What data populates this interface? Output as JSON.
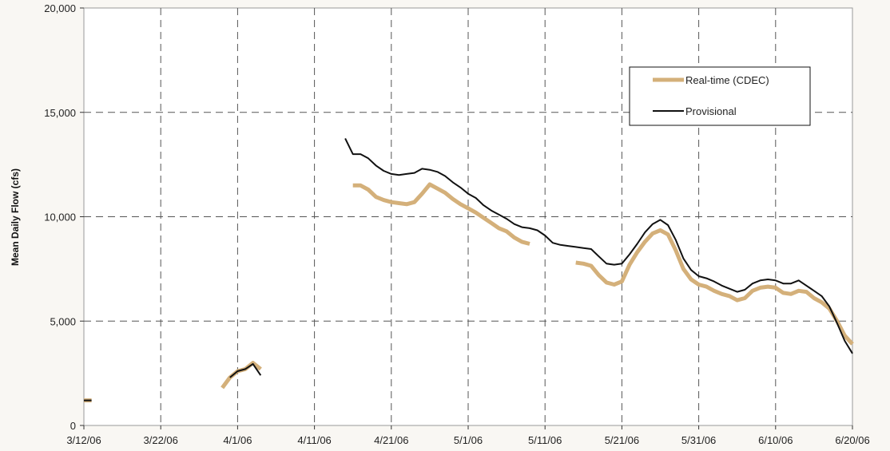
{
  "chart_data": {
    "type": "line",
    "title": "",
    "xlabel": "",
    "ylabel": "Mean Daily Flow (cfs)",
    "x_range": [
      "2006-03-12",
      "2006-06-20"
    ],
    "ylim": [
      0,
      20000
    ],
    "x_ticks": [
      "3/12/06",
      "3/22/06",
      "4/1/06",
      "4/11/06",
      "4/21/06",
      "5/1/06",
      "5/11/06",
      "5/21/06",
      "5/31/06",
      "6/10/06",
      "6/20/06"
    ],
    "y_ticks": [
      "0",
      "5,000",
      "10,000",
      "15,000",
      "20,000"
    ],
    "grid": true,
    "legend_placement": "upper-right inside plot",
    "legend": [
      "Real-time (CDEC)",
      "Provisional"
    ],
    "series": [
      {
        "name": "Real-time (CDEC)",
        "color": "#d4b07a",
        "segments": [
          [
            [
              "2006-03-12",
              1200
            ],
            [
              "2006-03-13",
              1200
            ]
          ],
          [
            [
              "2006-03-30",
              1800
            ],
            [
              "2006-03-31",
              2300
            ],
            [
              "2006-04-01",
              2600
            ],
            [
              "2006-04-02",
              2700
            ],
            [
              "2006-04-03",
              3000
            ],
            [
              "2006-04-04",
              2700
            ]
          ],
          [
            [
              "2006-04-16",
              11500
            ],
            [
              "2006-04-17",
              11500
            ],
            [
              "2006-04-18",
              11300
            ],
            [
              "2006-04-19",
              10950
            ],
            [
              "2006-04-20",
              10800
            ],
            [
              "2006-04-21",
              10700
            ],
            [
              "2006-04-22",
              10650
            ],
            [
              "2006-04-23",
              10600
            ],
            [
              "2006-04-24",
              10700
            ],
            [
              "2006-04-25",
              11100
            ],
            [
              "2006-04-26",
              11550
            ],
            [
              "2006-04-27",
              11350
            ],
            [
              "2006-04-28",
              11150
            ],
            [
              "2006-04-29",
              10850
            ],
            [
              "2006-04-30",
              10600
            ],
            [
              "2006-05-01",
              10400
            ],
            [
              "2006-05-02",
              10200
            ],
            [
              "2006-05-03",
              9950
            ],
            [
              "2006-05-04",
              9700
            ],
            [
              "2006-05-05",
              9450
            ],
            [
              "2006-05-06",
              9300
            ],
            [
              "2006-05-07",
              9000
            ],
            [
              "2006-05-08",
              8800
            ],
            [
              "2006-05-09",
              8700
            ]
          ],
          [
            [
              "2006-05-15",
              7800
            ],
            [
              "2006-05-16",
              7750
            ],
            [
              "2006-05-17",
              7650
            ],
            [
              "2006-05-18",
              7200
            ],
            [
              "2006-05-19",
              6850
            ],
            [
              "2006-05-20",
              6750
            ],
            [
              "2006-05-21",
              6900
            ],
            [
              "2006-05-22",
              7700
            ],
            [
              "2006-05-23",
              8300
            ],
            [
              "2006-05-24",
              8800
            ],
            [
              "2006-05-25",
              9200
            ],
            [
              "2006-05-26",
              9350
            ],
            [
              "2006-05-27",
              9150
            ],
            [
              "2006-05-28",
              8400
            ],
            [
              "2006-05-29",
              7500
            ],
            [
              "2006-05-30",
              7000
            ],
            [
              "2006-05-31",
              6750
            ],
            [
              "2006-06-01",
              6650
            ],
            [
              "2006-06-02",
              6450
            ],
            [
              "2006-06-03",
              6300
            ],
            [
              "2006-06-04",
              6200
            ],
            [
              "2006-06-05",
              6000
            ],
            [
              "2006-06-06",
              6100
            ],
            [
              "2006-06-07",
              6450
            ],
            [
              "2006-06-08",
              6600
            ],
            [
              "2006-06-09",
              6650
            ],
            [
              "2006-06-10",
              6600
            ],
            [
              "2006-06-11",
              6350
            ],
            [
              "2006-06-12",
              6300
            ],
            [
              "2006-06-13",
              6450
            ],
            [
              "2006-06-14",
              6400
            ],
            [
              "2006-06-15",
              6100
            ],
            [
              "2006-06-16",
              5900
            ],
            [
              "2006-06-17",
              5600
            ],
            [
              "2006-06-18",
              5000
            ],
            [
              "2006-06-19",
              4300
            ],
            [
              "2006-06-20",
              3900
            ]
          ]
        ]
      },
      {
        "name": "Provisional",
        "color": "#111111",
        "segments": [
          [
            [
              "2006-03-12",
              1200
            ],
            [
              "2006-03-13",
              1200
            ]
          ],
          [
            [
              "2006-03-31",
              2300
            ],
            [
              "2006-04-01",
              2600
            ],
            [
              "2006-04-02",
              2700
            ],
            [
              "2006-04-03",
              2950
            ],
            [
              "2006-04-04",
              2400
            ]
          ],
          [
            [
              "2006-04-15",
              13750
            ],
            [
              "2006-04-16",
              13000
            ],
            [
              "2006-04-17",
              13000
            ],
            [
              "2006-04-18",
              12800
            ],
            [
              "2006-04-19",
              12450
            ],
            [
              "2006-04-20",
              12200
            ],
            [
              "2006-04-21",
              12050
            ],
            [
              "2006-04-22",
              12000
            ],
            [
              "2006-04-23",
              12050
            ],
            [
              "2006-04-24",
              12100
            ],
            [
              "2006-04-25",
              12300
            ],
            [
              "2006-04-26",
              12250
            ],
            [
              "2006-04-27",
              12150
            ],
            [
              "2006-04-28",
              11950
            ],
            [
              "2006-04-29",
              11650
            ],
            [
              "2006-04-30",
              11400
            ],
            [
              "2006-05-01",
              11100
            ],
            [
              "2006-05-02",
              10900
            ],
            [
              "2006-05-03",
              10550
            ],
            [
              "2006-05-04",
              10300
            ],
            [
              "2006-05-05",
              10100
            ],
            [
              "2006-05-06",
              9900
            ],
            [
              "2006-05-07",
              9650
            ],
            [
              "2006-05-08",
              9500
            ],
            [
              "2006-05-09",
              9450
            ],
            [
              "2006-05-10",
              9350
            ],
            [
              "2006-05-11",
              9100
            ],
            [
              "2006-05-12",
              8750
            ],
            [
              "2006-05-13",
              8650
            ],
            [
              "2006-05-14",
              8600
            ],
            [
              "2006-05-15",
              8550
            ],
            [
              "2006-05-16",
              8500
            ],
            [
              "2006-05-17",
              8450
            ],
            [
              "2006-05-18",
              8100
            ],
            [
              "2006-05-19",
              7750
            ],
            [
              "2006-05-20",
              7700
            ],
            [
              "2006-05-21",
              7750
            ],
            [
              "2006-05-22",
              8200
            ],
            [
              "2006-05-23",
              8700
            ],
            [
              "2006-05-24",
              9250
            ],
            [
              "2006-05-25",
              9650
            ],
            [
              "2006-05-26",
              9850
            ],
            [
              "2006-05-27",
              9600
            ],
            [
              "2006-05-28",
              8900
            ],
            [
              "2006-05-29",
              8000
            ],
            [
              "2006-05-30",
              7450
            ],
            [
              "2006-05-31",
              7150
            ],
            [
              "2006-06-01",
              7050
            ],
            [
              "2006-06-02",
              6900
            ],
            [
              "2006-06-03",
              6700
            ],
            [
              "2006-06-04",
              6550
            ],
            [
              "2006-06-05",
              6400
            ],
            [
              "2006-06-06",
              6500
            ],
            [
              "2006-06-07",
              6800
            ],
            [
              "2006-06-08",
              6950
            ],
            [
              "2006-06-09",
              7000
            ],
            [
              "2006-06-10",
              6950
            ],
            [
              "2006-06-11",
              6800
            ],
            [
              "2006-06-12",
              6800
            ],
            [
              "2006-06-13",
              6950
            ],
            [
              "2006-06-14",
              6700
            ],
            [
              "2006-06-15",
              6450
            ],
            [
              "2006-06-16",
              6200
            ],
            [
              "2006-06-17",
              5700
            ],
            [
              "2006-06-18",
              4900
            ],
            [
              "2006-06-19",
              4050
            ],
            [
              "2006-06-20",
              3450
            ]
          ]
        ]
      }
    ]
  }
}
